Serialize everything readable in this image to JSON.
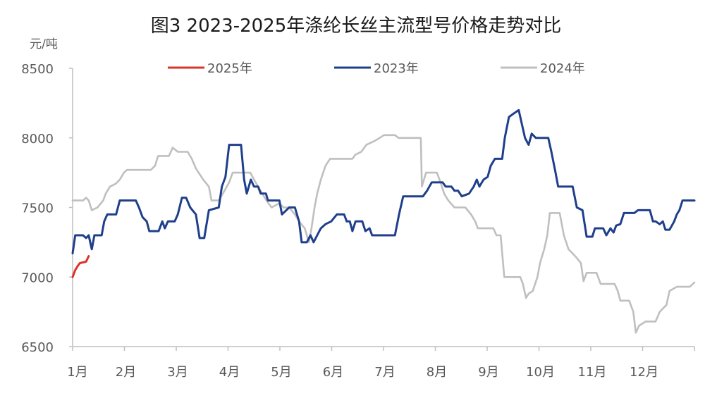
{
  "chart_data": {
    "type": "line",
    "title": "图3 2023-2025年涤纶长丝主流型号价格走势对比",
    "ylabel": "元/吨",
    "xlabel": "",
    "ylim": [
      6500,
      8500
    ],
    "yticks": [
      6500,
      7000,
      7500,
      8000,
      8500
    ],
    "xlim": [
      1,
      13
    ],
    "categories": [
      "1月",
      "2月",
      "3月",
      "4月",
      "5月",
      "6月",
      "7月",
      "8月",
      "9月",
      "10月",
      "11月",
      "12月"
    ],
    "grid": false,
    "legend": "top",
    "series": [
      {
        "name": "2025年",
        "color": "#d9352a",
        "points": [
          [
            1.0,
            7000
          ],
          [
            1.05,
            7050
          ],
          [
            1.1,
            7080
          ],
          [
            1.14,
            7100
          ],
          [
            1.26,
            7110
          ],
          [
            1.31,
            7150
          ]
        ]
      },
      {
        "name": "2023年",
        "color": "#1f3f8c",
        "points": [
          [
            1.0,
            7170
          ],
          [
            1.05,
            7300
          ],
          [
            1.2,
            7300
          ],
          [
            1.26,
            7280
          ],
          [
            1.31,
            7300
          ],
          [
            1.37,
            7200
          ],
          [
            1.42,
            7300
          ],
          [
            1.56,
            7300
          ],
          [
            1.61,
            7400
          ],
          [
            1.67,
            7450
          ],
          [
            1.84,
            7450
          ],
          [
            1.91,
            7550
          ],
          [
            2.22,
            7550
          ],
          [
            2.28,
            7500
          ],
          [
            2.35,
            7430
          ],
          [
            2.43,
            7400
          ],
          [
            2.48,
            7330
          ],
          [
            2.66,
            7330
          ],
          [
            2.73,
            7400
          ],
          [
            2.78,
            7350
          ],
          [
            2.84,
            7400
          ],
          [
            2.97,
            7400
          ],
          [
            3.03,
            7450
          ],
          [
            3.11,
            7570
          ],
          [
            3.19,
            7570
          ],
          [
            3.27,
            7500
          ],
          [
            3.38,
            7450
          ],
          [
            3.45,
            7280
          ],
          [
            3.54,
            7280
          ],
          [
            3.63,
            7480
          ],
          [
            3.82,
            7500
          ],
          [
            3.88,
            7650
          ],
          [
            3.95,
            7720
          ],
          [
            4.02,
            7950
          ],
          [
            4.25,
            7950
          ],
          [
            4.31,
            7700
          ],
          [
            4.36,
            7600
          ],
          [
            4.4,
            7650
          ],
          [
            4.44,
            7700
          ],
          [
            4.5,
            7650
          ],
          [
            4.58,
            7650
          ],
          [
            4.63,
            7600
          ],
          [
            4.73,
            7600
          ],
          [
            4.77,
            7550
          ],
          [
            4.99,
            7550
          ],
          [
            5.04,
            7450
          ],
          [
            5.18,
            7500
          ],
          [
            5.29,
            7500
          ],
          [
            5.37,
            7400
          ],
          [
            5.42,
            7250
          ],
          [
            5.52,
            7250
          ],
          [
            5.59,
            7300
          ],
          [
            5.65,
            7250
          ],
          [
            5.72,
            7300
          ],
          [
            5.79,
            7350
          ],
          [
            5.88,
            7380
          ],
          [
            5.99,
            7400
          ],
          [
            6.1,
            7450
          ],
          [
            6.24,
            7450
          ],
          [
            6.29,
            7400
          ],
          [
            6.35,
            7400
          ],
          [
            6.4,
            7330
          ],
          [
            6.46,
            7400
          ],
          [
            6.59,
            7400
          ],
          [
            6.65,
            7330
          ],
          [
            6.73,
            7350
          ],
          [
            6.78,
            7300
          ],
          [
            7.22,
            7300
          ],
          [
            7.3,
            7450
          ],
          [
            7.38,
            7580
          ],
          [
            7.76,
            7580
          ],
          [
            7.84,
            7620
          ],
          [
            7.93,
            7680
          ],
          [
            8.14,
            7680
          ],
          [
            8.2,
            7650
          ],
          [
            8.31,
            7650
          ],
          [
            8.37,
            7620
          ],
          [
            8.44,
            7620
          ],
          [
            8.51,
            7580
          ],
          [
            8.65,
            7600
          ],
          [
            8.74,
            7650
          ],
          [
            8.8,
            7700
          ],
          [
            8.85,
            7650
          ],
          [
            8.93,
            7700
          ],
          [
            9.01,
            7720
          ],
          [
            9.07,
            7800
          ],
          [
            9.15,
            7850
          ],
          [
            9.29,
            7850
          ],
          [
            9.34,
            8000
          ],
          [
            9.42,
            8150
          ],
          [
            9.53,
            8180
          ],
          [
            9.61,
            8200
          ],
          [
            9.67,
            8100
          ],
          [
            9.73,
            8000
          ],
          [
            9.8,
            7950
          ],
          [
            9.86,
            8030
          ],
          [
            9.94,
            8000
          ],
          [
            10.18,
            8000
          ],
          [
            10.24,
            7900
          ],
          [
            10.32,
            7750
          ],
          [
            10.37,
            7650
          ],
          [
            10.65,
            7650
          ],
          [
            10.73,
            7500
          ],
          [
            10.84,
            7480
          ],
          [
            10.92,
            7290
          ],
          [
            11.03,
            7290
          ],
          [
            11.08,
            7350
          ],
          [
            11.24,
            7350
          ],
          [
            11.3,
            7300
          ],
          [
            11.38,
            7350
          ],
          [
            11.44,
            7320
          ],
          [
            11.49,
            7370
          ],
          [
            11.57,
            7380
          ],
          [
            11.64,
            7460
          ],
          [
            11.84,
            7460
          ],
          [
            11.91,
            7480
          ],
          [
            12.14,
            7480
          ],
          [
            12.2,
            7400
          ],
          [
            12.25,
            7400
          ],
          [
            12.33,
            7380
          ],
          [
            12.39,
            7400
          ],
          [
            12.44,
            7340
          ],
          [
            12.52,
            7340
          ],
          [
            12.61,
            7400
          ],
          [
            12.66,
            7450
          ],
          [
            12.71,
            7480
          ],
          [
            12.77,
            7550
          ],
          [
            13.0,
            7550
          ]
        ]
      },
      {
        "name": "2024年",
        "color": "#bfbfbf",
        "points": [
          [
            1.0,
            7550
          ],
          [
            1.2,
            7550
          ],
          [
            1.26,
            7570
          ],
          [
            1.31,
            7550
          ],
          [
            1.37,
            7480
          ],
          [
            1.48,
            7500
          ],
          [
            1.59,
            7550
          ],
          [
            1.64,
            7600
          ],
          [
            1.72,
            7650
          ],
          [
            1.83,
            7670
          ],
          [
            1.91,
            7700
          ],
          [
            1.99,
            7750
          ],
          [
            2.05,
            7770
          ],
          [
            2.51,
            7770
          ],
          [
            2.59,
            7800
          ],
          [
            2.65,
            7870
          ],
          [
            2.86,
            7870
          ],
          [
            2.93,
            7930
          ],
          [
            3.03,
            7900
          ],
          [
            3.22,
            7900
          ],
          [
            3.3,
            7850
          ],
          [
            3.38,
            7780
          ],
          [
            3.52,
            7700
          ],
          [
            3.63,
            7650
          ],
          [
            3.68,
            7550
          ],
          [
            3.82,
            7550
          ],
          [
            3.93,
            7620
          ],
          [
            4.02,
            7680
          ],
          [
            4.09,
            7750
          ],
          [
            4.43,
            7750
          ],
          [
            4.5,
            7700
          ],
          [
            4.58,
            7650
          ],
          [
            4.66,
            7600
          ],
          [
            4.74,
            7550
          ],
          [
            4.84,
            7500
          ],
          [
            4.99,
            7530
          ],
          [
            5.07,
            7500
          ],
          [
            5.18,
            7500
          ],
          [
            5.29,
            7450
          ],
          [
            5.37,
            7400
          ],
          [
            5.48,
            7350
          ],
          [
            5.56,
            7250
          ],
          [
            5.61,
            7350
          ],
          [
            5.67,
            7500
          ],
          [
            5.72,
            7600
          ],
          [
            5.79,
            7700
          ],
          [
            5.88,
            7800
          ],
          [
            5.97,
            7850
          ],
          [
            6.4,
            7850
          ],
          [
            6.46,
            7880
          ],
          [
            6.57,
            7900
          ],
          [
            6.67,
            7950
          ],
          [
            6.84,
            7980
          ],
          [
            7.01,
            8020
          ],
          [
            7.22,
            8020
          ],
          [
            7.29,
            8000
          ],
          [
            7.72,
            8000
          ],
          [
            7.74,
            7650
          ],
          [
            7.82,
            7750
          ],
          [
            8.03,
            7750
          ],
          [
            8.1,
            7680
          ],
          [
            8.17,
            7600
          ],
          [
            8.25,
            7550
          ],
          [
            8.37,
            7500
          ],
          [
            8.58,
            7500
          ],
          [
            8.69,
            7450
          ],
          [
            8.77,
            7400
          ],
          [
            8.82,
            7350
          ],
          [
            9.12,
            7350
          ],
          [
            9.18,
            7300
          ],
          [
            9.26,
            7300
          ],
          [
            9.33,
            7000
          ],
          [
            9.64,
            7000
          ],
          [
            9.69,
            6950
          ],
          [
            9.75,
            6850
          ],
          [
            9.8,
            6880
          ],
          [
            9.88,
            6900
          ],
          [
            9.97,
            7000
          ],
          [
            10.02,
            7100
          ],
          [
            10.1,
            7200
          ],
          [
            10.16,
            7300
          ],
          [
            10.21,
            7460
          ],
          [
            10.4,
            7460
          ],
          [
            10.48,
            7300
          ],
          [
            10.57,
            7200
          ],
          [
            10.7,
            7150
          ],
          [
            10.81,
            7100
          ],
          [
            10.86,
            6970
          ],
          [
            10.92,
            7030
          ],
          [
            11.11,
            7030
          ],
          [
            11.19,
            6950
          ],
          [
            11.46,
            6950
          ],
          [
            11.52,
            6900
          ],
          [
            11.57,
            6830
          ],
          [
            11.74,
            6830
          ],
          [
            11.82,
            6750
          ],
          [
            11.87,
            6600
          ],
          [
            11.93,
            6650
          ],
          [
            12.06,
            6680
          ],
          [
            12.25,
            6680
          ],
          [
            12.33,
            6750
          ],
          [
            12.46,
            6800
          ],
          [
            12.52,
            6900
          ],
          [
            12.66,
            6930
          ],
          [
            12.91,
            6930
          ],
          [
            13.0,
            6960
          ]
        ]
      }
    ]
  }
}
